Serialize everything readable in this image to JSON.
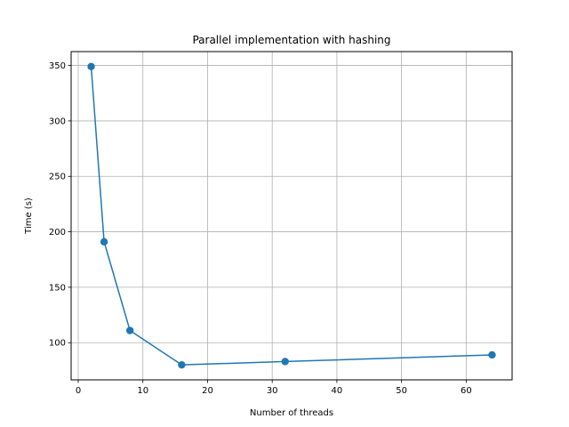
{
  "chart_data": {
    "type": "line",
    "title": "Parallel implementation with hashing",
    "xlabel": "Number of threads",
    "ylabel": "Time (s)",
    "xlim": [
      -1.1,
      67.1
    ],
    "ylim": [
      66.5,
      362.5
    ],
    "xticks": [
      0,
      10,
      20,
      30,
      40,
      50,
      60
    ],
    "yticks": [
      100,
      150,
      200,
      250,
      300,
      350
    ],
    "grid": true,
    "series": [
      {
        "x": [
          2,
          4,
          8,
          16,
          32,
          64
        ],
        "y": [
          349,
          191,
          111,
          80,
          83,
          89
        ],
        "color": "#1f77b4",
        "marker": "circle"
      }
    ]
  }
}
